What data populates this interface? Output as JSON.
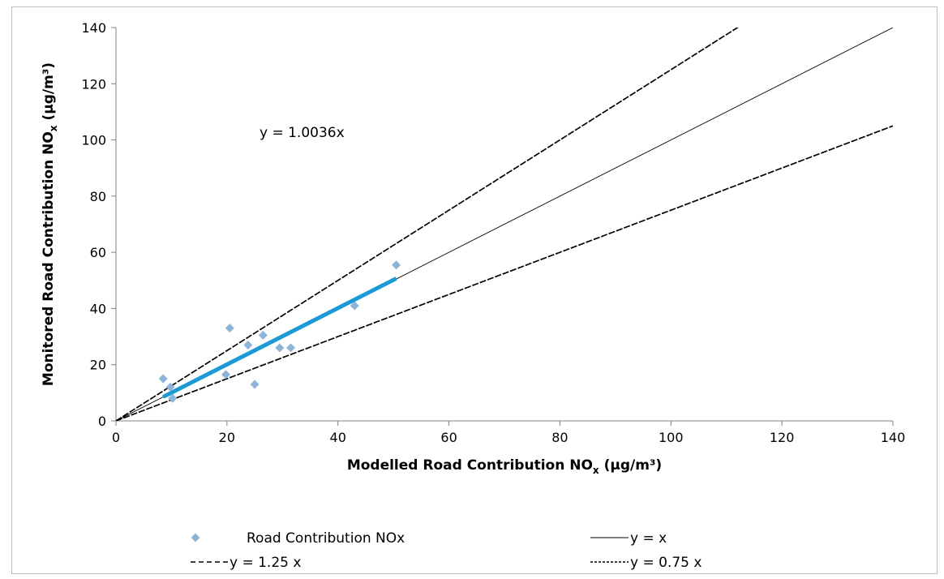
{
  "chart_data": {
    "type": "scatter",
    "title": "",
    "xlabel_main": "Modelled Road Contribution NO",
    "xlabel_sub": "x",
    "xlabel_unit": " (µg/m³)",
    "ylabel_main": "Monitored Road Contribution NO",
    "ylabel_sub": "x",
    "ylabel_unit": " (µg/m³)",
    "xlim": [
      0,
      140
    ],
    "ylim": [
      0,
      140
    ],
    "xticks": [
      "0",
      "20",
      "40",
      "60",
      "80",
      "100",
      "120",
      "140"
    ],
    "yticks": [
      "0",
      "20",
      "40",
      "60",
      "80",
      "100",
      "120",
      "140"
    ],
    "grid": false,
    "legend_placement": "bottom",
    "annotation": "y = 1.0036x",
    "series": [
      {
        "name": "Road Contribution NOx",
        "kind": "points",
        "color": "#8db3d9",
        "x": [
          8.5,
          9.8,
          10.2,
          19.8,
          20.5,
          23.8,
          25.0,
          26.5,
          29.5,
          31.5,
          43.0,
          50.5
        ],
        "y": [
          15.0,
          12.0,
          8.0,
          16.5,
          33.0,
          27.0,
          13.0,
          30.5,
          26.0,
          26.0,
          41.0,
          55.5
        ]
      },
      {
        "name": "y = x",
        "kind": "line",
        "slope": 1.0,
        "dash": "solid",
        "color": "#000000"
      },
      {
        "name": "y = 1.25 x",
        "kind": "line",
        "slope": 1.25,
        "dash": "dashed",
        "color": "#000000"
      },
      {
        "name": "y = 0.75 x",
        "kind": "line",
        "slope": 0.75,
        "dash": "dotted",
        "color": "#000000"
      },
      {
        "kind": "line",
        "slope": 0.75,
        "dash": "dashed",
        "color": "#000000"
      },
      {
        "kind": "line",
        "slope": 1.25,
        "dash": "dotted",
        "color": "#000000"
      },
      {
        "kind": "trend",
        "slope": 1.0036,
        "x_range": [
          8.5,
          50.5
        ],
        "color": "#1b9ad6"
      }
    ],
    "legend": [
      "Road Contribution NOx",
      "y = x",
      "y = 1.25 x",
      "y = 0.75 x"
    ]
  }
}
